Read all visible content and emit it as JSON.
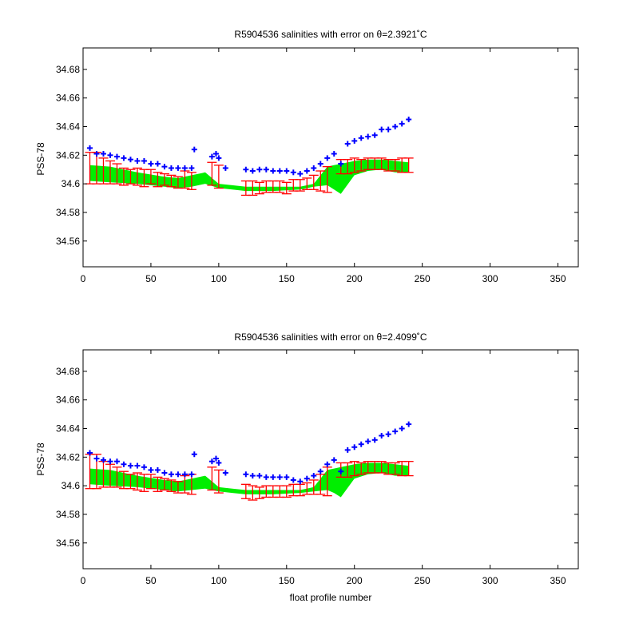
{
  "figure": {
    "xlabel": "float profile number"
  },
  "chart_data": [
    {
      "type": "scatter",
      "title": "R5904536 salinities with error on θ=2.3921˚C",
      "xlabel": "",
      "ylabel": "PSS-78",
      "xlim": [
        0,
        365
      ],
      "ylim": [
        34.542,
        34.695
      ],
      "xticks": [
        "0",
        "50",
        "100",
        "150",
        "200",
        "250",
        "300",
        "350"
      ],
      "yticks": [
        "34.56",
        "34.58",
        "34.6",
        "34.62",
        "34.64",
        "34.66",
        "34.68"
      ],
      "grid": false,
      "colors": {
        "blue": "#0000ff",
        "red": "#ff0000",
        "green": "#00ee00"
      },
      "series": [
        {
          "marker": "blue-plus",
          "x": [
            5,
            10,
            15,
            20,
            25,
            30,
            35,
            40,
            45,
            50,
            55,
            60,
            65,
            70,
            75,
            80,
            82,
            95,
            98,
            100,
            105,
            120,
            125,
            130,
            135,
            140,
            145,
            150,
            155,
            160,
            165,
            170,
            175,
            180,
            185,
            190,
            195,
            200,
            205,
            210,
            215,
            220,
            225,
            230,
            235,
            240
          ],
          "y": [
            34.625,
            34.621,
            34.621,
            34.62,
            34.619,
            34.618,
            34.617,
            34.616,
            34.616,
            34.614,
            34.614,
            34.612,
            34.611,
            34.611,
            34.611,
            34.611,
            34.624,
            34.619,
            34.621,
            34.618,
            34.611,
            34.61,
            34.609,
            34.61,
            34.61,
            34.609,
            34.609,
            34.609,
            34.608,
            34.607,
            34.609,
            34.611,
            34.614,
            34.618,
            34.621,
            34.614,
            34.628,
            34.63,
            34.632,
            34.633,
            34.634,
            34.638,
            34.638,
            34.64,
            34.642,
            34.645
          ]
        },
        {
          "marker": "red-errorbar",
          "x": [
            5,
            10,
            15,
            20,
            25,
            30,
            35,
            40,
            45,
            50,
            55,
            60,
            65,
            70,
            75,
            80,
            95,
            100,
            120,
            125,
            130,
            135,
            140,
            145,
            150,
            155,
            160,
            165,
            170,
            175,
            180,
            190,
            195,
            200,
            205,
            210,
            215,
            220,
            225,
            230,
            235,
            240
          ],
          "y": [
            34.611,
            34.611,
            34.609,
            34.608,
            34.607,
            34.605,
            34.605,
            34.605,
            34.604,
            34.605,
            34.603,
            34.603,
            34.602,
            34.601,
            34.603,
            34.602,
            34.607,
            34.605,
            34.597,
            34.597,
            34.597,
            34.598,
            34.598,
            34.598,
            34.597,
            34.599,
            34.599,
            34.6,
            34.601,
            34.602,
            34.603,
            34.612,
            34.612,
            34.613,
            34.613,
            34.614,
            34.614,
            34.614,
            34.613,
            34.613,
            34.613,
            34.613
          ],
          "err": [
            0.011,
            0.011,
            0.009,
            0.008,
            0.007,
            0.006,
            0.005,
            0.006,
            0.006,
            0.005,
            0.005,
            0.004,
            0.004,
            0.004,
            0.006,
            0.006,
            0.008,
            0.008,
            0.005,
            0.005,
            0.004,
            0.004,
            0.004,
            0.004,
            0.004,
            0.004,
            0.004,
            0.004,
            0.005,
            0.007,
            0.009,
            0.005,
            0.005,
            0.005,
            0.004,
            0.004,
            0.004,
            0.004,
            0.004,
            0.004,
            0.005,
            0.005
          ]
        },
        {
          "marker": "green-band",
          "x": [
            5,
            20,
            40,
            60,
            70,
            80,
            90,
            100,
            110,
            120,
            140,
            160,
            170,
            180,
            185,
            190,
            200,
            210,
            220,
            230,
            240
          ],
          "low": [
            34.602,
            34.601,
            34.6,
            34.598,
            34.597,
            34.598,
            34.6,
            34.597,
            34.596,
            34.595,
            34.595,
            34.596,
            34.598,
            34.599,
            34.596,
            34.593,
            34.606,
            34.609,
            34.61,
            34.608,
            34.608
          ],
          "high": [
            34.613,
            34.612,
            34.608,
            34.605,
            34.604,
            34.606,
            34.608,
            34.6,
            34.599,
            34.598,
            34.598,
            34.598,
            34.6,
            34.612,
            34.613,
            34.614,
            34.616,
            34.617,
            34.617,
            34.616,
            34.615
          ]
        }
      ]
    },
    {
      "type": "scatter",
      "title": "R5904536 salinities with error on θ=2.4099˚C",
      "xlabel": "float profile number",
      "ylabel": "PSS-78",
      "xlim": [
        0,
        365
      ],
      "ylim": [
        34.542,
        34.695
      ],
      "xticks": [
        "0",
        "50",
        "100",
        "150",
        "200",
        "250",
        "300",
        "350"
      ],
      "yticks": [
        "34.56",
        "34.58",
        "34.6",
        "34.62",
        "34.64",
        "34.66",
        "34.68"
      ],
      "grid": false,
      "colors": {
        "blue": "#0000ff",
        "red": "#ff0000",
        "green": "#00ee00"
      },
      "series": [
        {
          "marker": "blue-plus",
          "x": [
            5,
            10,
            15,
            20,
            25,
            30,
            35,
            40,
            45,
            50,
            55,
            60,
            65,
            70,
            75,
            80,
            82,
            95,
            98,
            100,
            105,
            120,
            125,
            130,
            135,
            140,
            145,
            150,
            155,
            160,
            165,
            170,
            175,
            180,
            185,
            190,
            195,
            200,
            205,
            210,
            215,
            220,
            225,
            230,
            235,
            240
          ],
          "y": [
            34.623,
            34.619,
            34.618,
            34.617,
            34.617,
            34.615,
            34.614,
            34.614,
            34.613,
            34.611,
            34.611,
            34.609,
            34.608,
            34.608,
            34.608,
            34.608,
            34.622,
            34.617,
            34.619,
            34.616,
            34.609,
            34.608,
            34.607,
            34.607,
            34.606,
            34.606,
            34.606,
            34.606,
            34.604,
            34.603,
            34.605,
            34.607,
            34.61,
            34.615,
            34.618,
            34.61,
            34.625,
            34.627,
            34.629,
            34.631,
            34.632,
            34.635,
            34.636,
            34.638,
            34.64,
            34.643
          ]
        },
        {
          "marker": "red-errorbar",
          "x": [
            5,
            10,
            15,
            20,
            25,
            30,
            35,
            40,
            45,
            50,
            55,
            60,
            65,
            70,
            75,
            80,
            95,
            100,
            120,
            125,
            130,
            135,
            140,
            145,
            150,
            155,
            160,
            165,
            170,
            175,
            180,
            190,
            195,
            200,
            205,
            210,
            215,
            220,
            225,
            230,
            235,
            240
          ],
          "y": [
            34.61,
            34.61,
            34.608,
            34.607,
            34.606,
            34.604,
            34.603,
            34.603,
            34.602,
            34.603,
            34.601,
            34.601,
            34.6,
            34.599,
            34.601,
            34.601,
            34.605,
            34.603,
            34.596,
            34.595,
            34.595,
            34.596,
            34.596,
            34.596,
            34.596,
            34.597,
            34.597,
            34.598,
            34.599,
            34.601,
            34.603,
            34.611,
            34.611,
            34.612,
            34.612,
            34.613,
            34.613,
            34.613,
            34.612,
            34.612,
            34.612,
            34.612
          ],
          "err": [
            0.012,
            0.012,
            0.009,
            0.008,
            0.007,
            0.006,
            0.005,
            0.006,
            0.006,
            0.005,
            0.005,
            0.004,
            0.004,
            0.004,
            0.006,
            0.007,
            0.008,
            0.008,
            0.005,
            0.005,
            0.004,
            0.004,
            0.004,
            0.004,
            0.004,
            0.004,
            0.004,
            0.004,
            0.005,
            0.007,
            0.01,
            0.005,
            0.005,
            0.005,
            0.004,
            0.004,
            0.004,
            0.004,
            0.004,
            0.004,
            0.005,
            0.005
          ]
        },
        {
          "marker": "green-band",
          "x": [
            5,
            20,
            40,
            60,
            70,
            80,
            90,
            100,
            110,
            120,
            140,
            160,
            170,
            180,
            185,
            190,
            200,
            210,
            220,
            230,
            240
          ],
          "low": [
            34.601,
            34.6,
            34.599,
            34.597,
            34.596,
            34.597,
            34.598,
            34.596,
            34.595,
            34.594,
            34.594,
            34.595,
            34.596,
            34.597,
            34.595,
            34.592,
            34.605,
            34.608,
            34.609,
            34.607,
            34.607
          ],
          "high": [
            34.612,
            34.611,
            34.607,
            34.604,
            34.603,
            34.605,
            34.607,
            34.599,
            34.598,
            34.597,
            34.597,
            34.597,
            34.599,
            34.611,
            34.612,
            34.613,
            34.615,
            34.616,
            34.616,
            34.615,
            34.614
          ]
        }
      ]
    }
  ]
}
